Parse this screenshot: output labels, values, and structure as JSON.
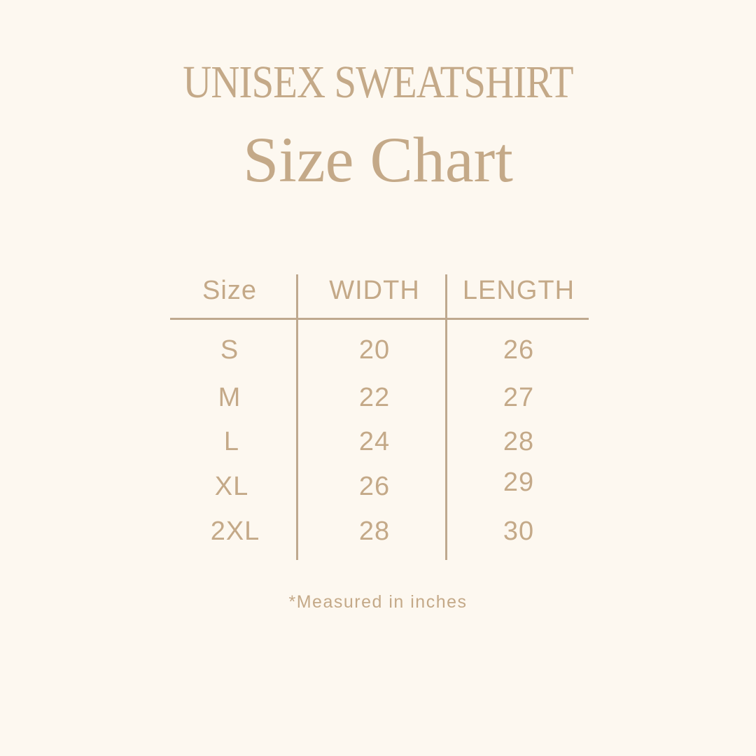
{
  "header": {
    "title": "UNISEX SWEATSHIRT",
    "subtitle": "Size Chart"
  },
  "table": {
    "columns": [
      "Size",
      "WIDTH",
      "LENGTH"
    ],
    "rows": [
      [
        "S",
        "20",
        "26"
      ],
      [
        "M",
        "22",
        "27"
      ],
      [
        "L",
        "24",
        "28"
      ],
      [
        "XL",
        "26",
        "29"
      ],
      [
        "2XL",
        "28",
        "30"
      ]
    ]
  },
  "footnote": "*Measured in inches",
  "colors": {
    "background": "#fdf8f0",
    "text": "#c4a988",
    "rules": "#bfa98f"
  }
}
